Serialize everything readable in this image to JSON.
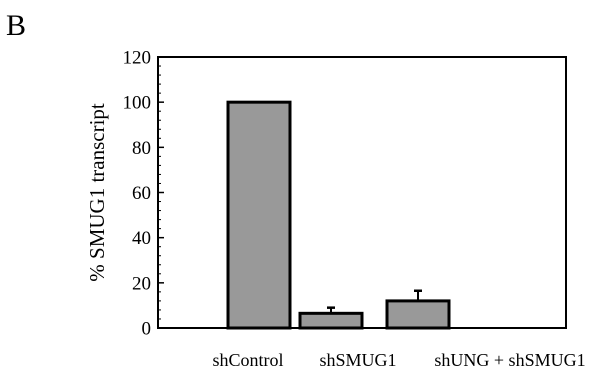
{
  "panel_label": "B",
  "colors": {
    "bar_fill": "#999999",
    "bar_stroke": "#000000",
    "axis": "#000000",
    "background": "#ffffff"
  },
  "chart_data": {
    "type": "bar",
    "title": "",
    "xlabel": "",
    "ylabel": "% SMUG1 transcript",
    "categories": [
      "shControl",
      "shSMUG1",
      "shUNG + shSMUG1"
    ],
    "values": [
      100,
      6.5,
      12
    ],
    "error_bars": [
      0,
      2.5,
      4.5
    ],
    "ylim": [
      0,
      120
    ],
    "y_ticks": [
      0,
      20,
      40,
      60,
      80,
      100,
      120
    ],
    "y_tick_labels": [
      "0",
      "20",
      "40",
      "60",
      "80",
      "100",
      "120"
    ],
    "grid": false,
    "legend": "none",
    "plot_frame": "box"
  }
}
